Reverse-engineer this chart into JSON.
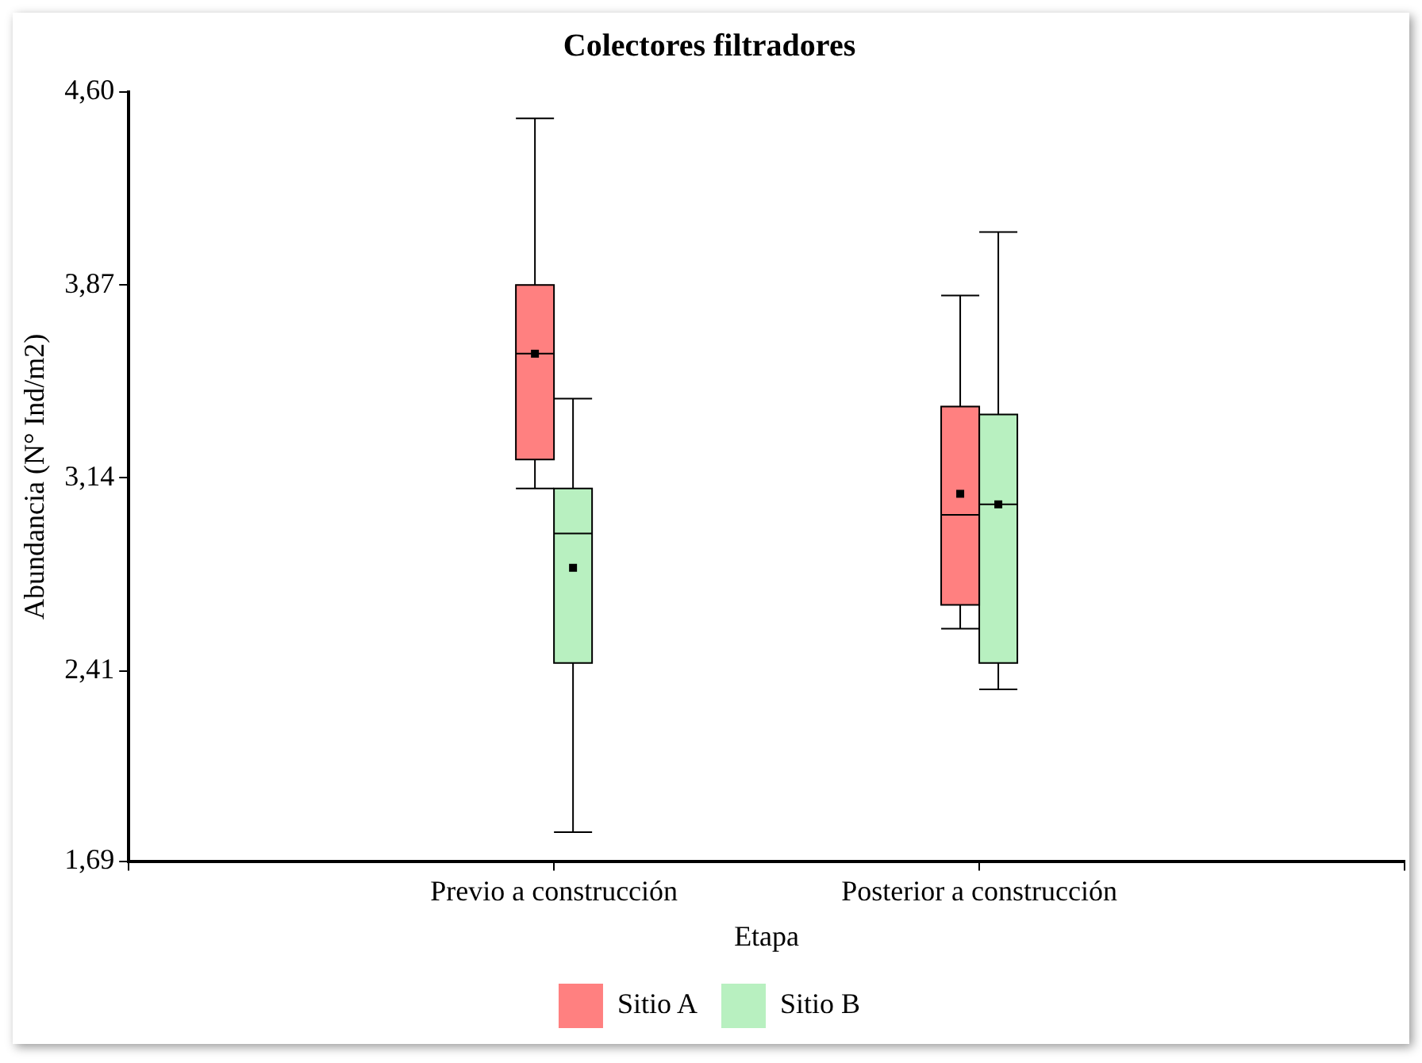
{
  "chart_data": {
    "type": "box",
    "title": "Colectores filtradores",
    "xlabel": "Etapa",
    "ylabel": "Abundancia (N° Ind/m2)",
    "categories": [
      "Previo a construcción",
      "Posterior a construcción"
    ],
    "series": [
      {
        "name": "Sitio A",
        "color": "#ff8080",
        "boxes": [
          {
            "low": 3.1,
            "q1": 3.21,
            "median": 3.61,
            "q3": 3.87,
            "high": 4.5,
            "mean": 3.61
          },
          {
            "low": 2.57,
            "q1": 2.66,
            "median": 3.0,
            "q3": 3.41,
            "high": 3.83,
            "mean": 3.08
          }
        ]
      },
      {
        "name": "Sitio B",
        "color": "#b8f0c0",
        "boxes": [
          {
            "low": 1.8,
            "q1": 2.44,
            "median": 2.93,
            "q3": 3.1,
            "high": 3.44,
            "mean": 2.8
          },
          {
            "low": 2.34,
            "q1": 2.44,
            "median": 3.04,
            "q3": 3.38,
            "high": 4.07,
            "mean": 3.04
          }
        ]
      }
    ],
    "ylim": [
      1.69,
      4.6
    ],
    "yticks": [
      {
        "value": 1.69,
        "label": "1,69"
      },
      {
        "value": 2.41,
        "label": "2,41"
      },
      {
        "value": 3.14,
        "label": "3,14"
      },
      {
        "value": 3.87,
        "label": "3,87"
      },
      {
        "value": 4.6,
        "label": "4,60"
      }
    ],
    "grid": false,
    "legend": "bottom"
  }
}
